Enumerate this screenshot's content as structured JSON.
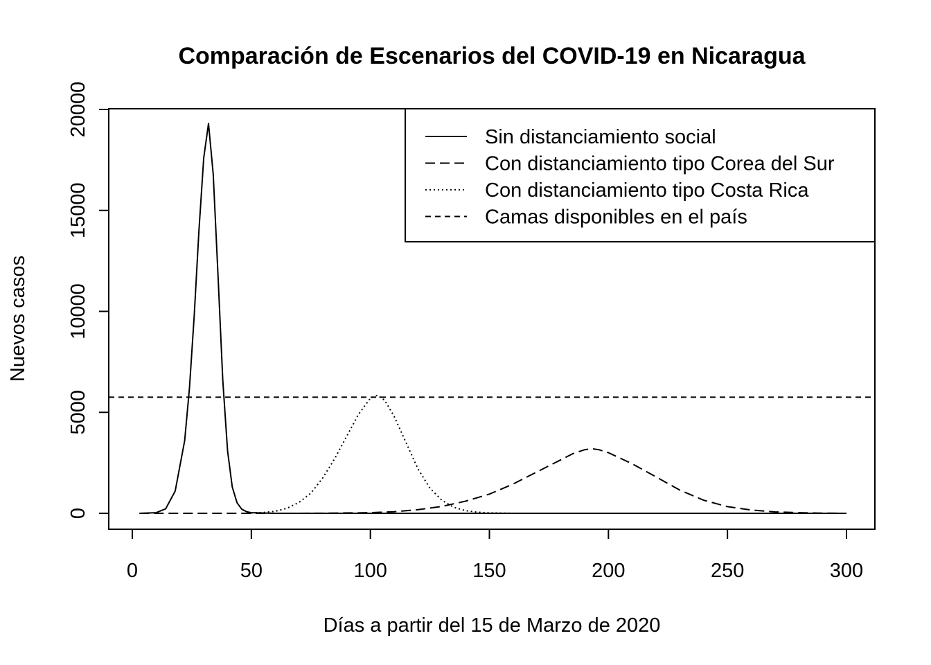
{
  "chart_data": {
    "type": "line",
    "title": "Comparación de Escenarios del COVID-19 en Nicaragua",
    "xlabel": "Días a partir del 15 de Marzo de 2020",
    "ylabel": "Nuevos casos",
    "xlim": [
      0,
      300
    ],
    "ylim": [
      0,
      20000
    ],
    "x_ticks": [
      0,
      50,
      100,
      150,
      200,
      250,
      300
    ],
    "y_ticks": [
      0,
      5000,
      10000,
      15000,
      20000
    ],
    "x_tick_labels": [
      "0",
      "50",
      "100",
      "150",
      "200",
      "250",
      "300"
    ],
    "y_tick_labels": [
      "0",
      "5000",
      "10000",
      "15000",
      "20000"
    ],
    "grid": false,
    "legend_position": "top-right",
    "series": [
      {
        "name": "Sin distanciamiento social",
        "line_style": "solid",
        "x": [
          3,
          10,
          14,
          18,
          22,
          24,
          26,
          28,
          30,
          32,
          34,
          36,
          38,
          40,
          42,
          44,
          46,
          48,
          50,
          60,
          80,
          100,
          150,
          200,
          250,
          300
        ],
        "y": [
          0,
          30,
          220,
          1100,
          3600,
          6200,
          9800,
          14000,
          17600,
          19300,
          16800,
          11800,
          6600,
          3100,
          1300,
          520,
          200,
          80,
          30,
          0,
          0,
          0,
          0,
          0,
          0,
          0
        ]
      },
      {
        "name": "Con distanciamiento tipo Corea del Sur",
        "line_style": "long-dash",
        "x": [
          3,
          60,
          80,
          100,
          110,
          120,
          130,
          140,
          150,
          160,
          170,
          180,
          185,
          190,
          193,
          196,
          200,
          210,
          220,
          230,
          240,
          250,
          260,
          270,
          280,
          290,
          300
        ],
        "y": [
          0,
          0,
          5,
          30,
          80,
          180,
          340,
          600,
          950,
          1450,
          2050,
          2650,
          2950,
          3150,
          3200,
          3150,
          3000,
          2450,
          1800,
          1150,
          650,
          330,
          160,
          70,
          30,
          10,
          0
        ]
      },
      {
        "name": "Con distanciamiento tipo Costa Rica",
        "line_style": "dotted",
        "x": [
          50,
          55,
          60,
          65,
          70,
          75,
          80,
          85,
          90,
          95,
          100,
          103,
          106,
          110,
          115,
          120,
          125,
          130,
          135,
          140,
          145,
          150,
          160
        ],
        "y": [
          20,
          40,
          100,
          250,
          540,
          1000,
          1750,
          2700,
          3800,
          4900,
          5700,
          5850,
          5600,
          4800,
          3500,
          2200,
          1250,
          650,
          300,
          130,
          55,
          20,
          0
        ]
      },
      {
        "name": "Camas disponibles en el país",
        "line_style": "short-dash",
        "y_constant": 5750
      }
    ]
  }
}
